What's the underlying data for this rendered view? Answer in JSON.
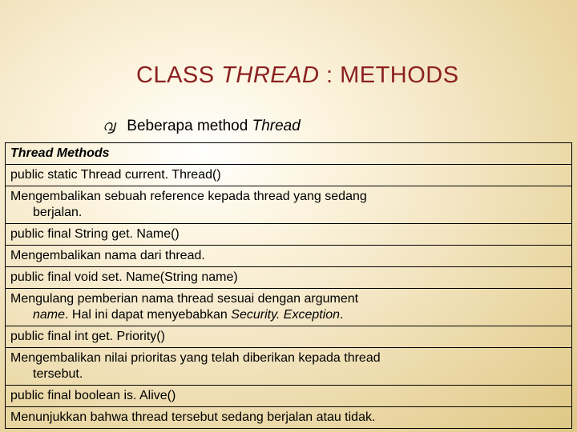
{
  "heading": {
    "pre": "CLASS ",
    "italic": "THREAD",
    "post": " : METHODS"
  },
  "subtitle": {
    "bullet": "൮",
    "text_pre": "Beberapa method ",
    "text_italic": "Thread"
  },
  "table": {
    "header": "Thread Methods",
    "rows": [
      {
        "type": "sig",
        "text": "public static Thread current. Thread()"
      },
      {
        "type": "desc",
        "html": "Mengembalikan sebuah reference kepada thread yang sedang<br><span class=\"indent\">berjalan.</span>"
      },
      {
        "type": "sig",
        "text": "public final String get. Name()"
      },
      {
        "type": "desc",
        "html": "Mengembalikan nama dari thread."
      },
      {
        "type": "sig",
        "text": "public final void set. Name(String name)"
      },
      {
        "type": "desc",
        "html": "Mengulang pemberian nama thread sesuai dengan argument<br><span class=\"indent\"><span class=\"inline-italic\">name</span>. Hal ini dapat menyebabkan <span class=\"inline-italic\">Security. Exception</span>.</span>"
      },
      {
        "type": "sig",
        "text": "public final int get. Priority()"
      },
      {
        "type": "desc",
        "html": "Mengembalikan nilai prioritas yang telah diberikan kepada thread<br><span class=\"indent\">tersebut.</span>"
      },
      {
        "type": "sig",
        "text": "public final boolean is. Alive()"
      },
      {
        "type": "desc",
        "html": "Menunjukkan bahwa thread tersebut sedang berjalan atau tidak."
      }
    ]
  },
  "colors": {
    "heading": "#8b2020",
    "border": "#000000"
  }
}
